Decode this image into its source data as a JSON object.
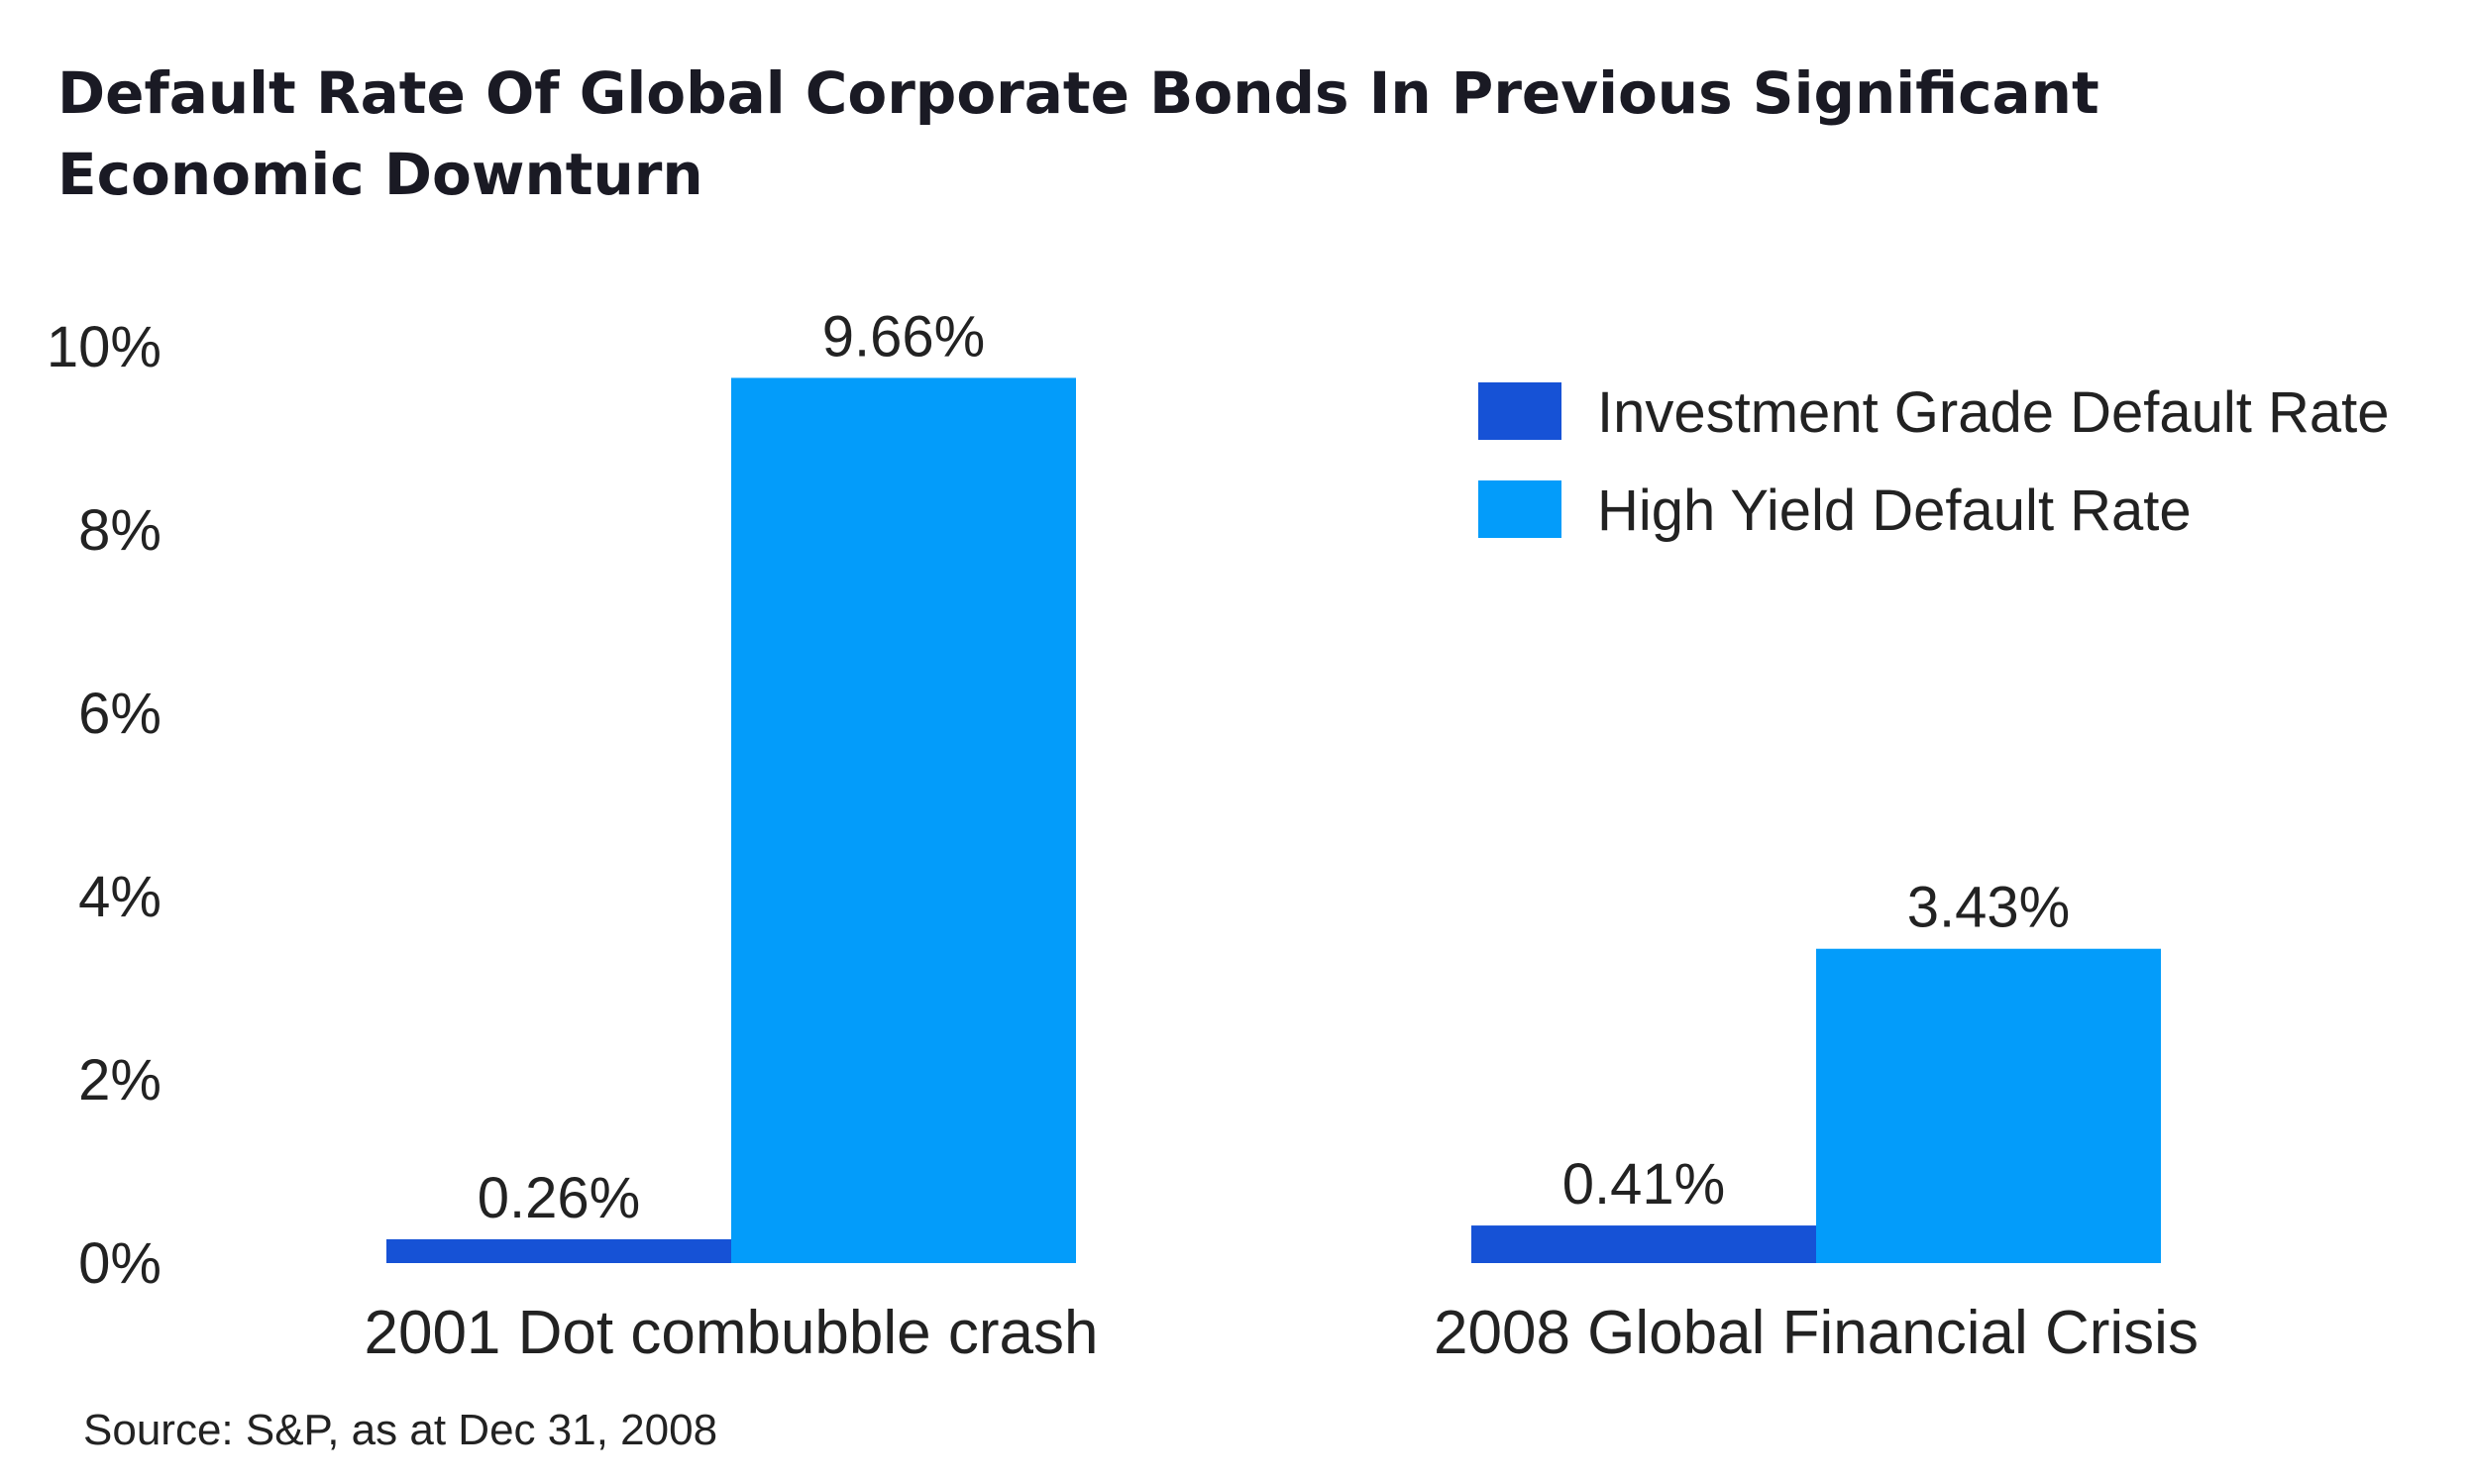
{
  "chart_data": {
    "type": "bar",
    "title_lines": [
      "Default Rate Of Global Corporate Bonds In Previous Significant",
      "Economic Downturn"
    ],
    "categories": [
      "2001 Dot combubble crash",
      "2008 Global Financial Crisis"
    ],
    "series": [
      {
        "name": "Investment Grade Default Rate",
        "values": [
          0.26,
          0.41
        ],
        "labels": [
          "0.26%",
          "0.41%"
        ],
        "color": "#1652d6"
      },
      {
        "name": "High Yield Default Rate",
        "values": [
          9.66,
          3.43
        ],
        "labels": [
          "9.66%",
          "3.43%"
        ],
        "color": "#039cfa"
      }
    ],
    "y_ticks": [
      0,
      2,
      4,
      6,
      8,
      10
    ],
    "y_tick_labels": [
      "0%",
      "2%",
      "4%",
      "6%",
      "8%",
      "10%"
    ],
    "ylim": [
      0,
      10
    ],
    "grid": false,
    "legend_position": "top-right",
    "source": "Source: S&P, as at Dec 31, 2008"
  }
}
